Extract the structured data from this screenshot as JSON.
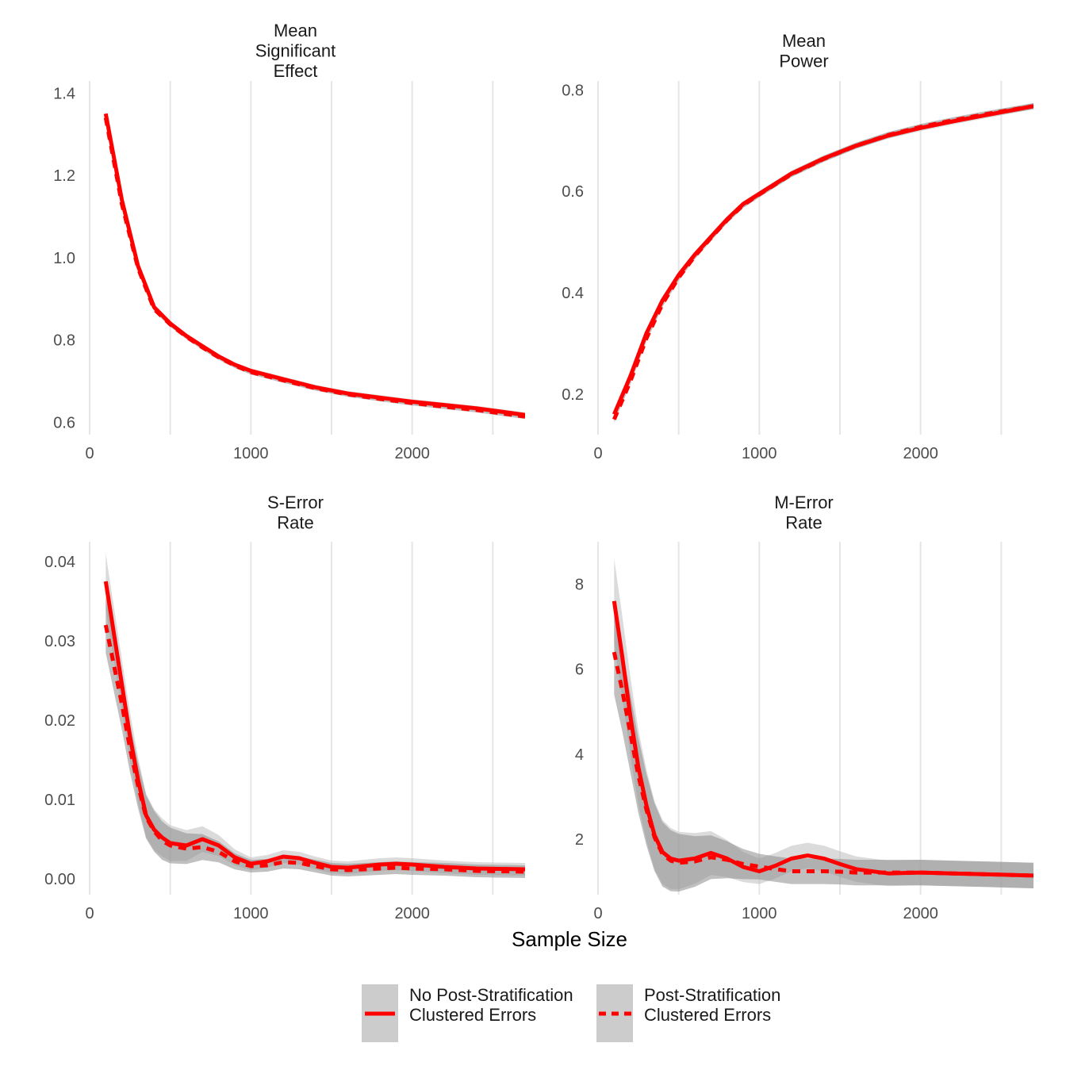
{
  "chart_data": {
    "type": "line",
    "xlabel": "Sample Size",
    "legend": {
      "placement": "bottom",
      "items": [
        {
          "label_line1": "No Post-Stratification",
          "label_line2": "Clustered Errors",
          "linetype": "solid"
        },
        {
          "label_line1": "Post-Stratification",
          "label_line2": "Clustered Errors",
          "linetype": "dashed"
        }
      ]
    },
    "colors": {
      "line": "#ff0000",
      "ribbon": "#bdbdbd",
      "ribbon_dark": "#8c8c8c",
      "legend_key": "#cccccc",
      "grid": "#e6e6e6"
    },
    "panels": [
      {
        "title_lines": [
          "Mean",
          "Significant",
          "Effect"
        ],
        "xlim": [
          0,
          2700
        ],
        "ylim": [
          0.57,
          1.42
        ],
        "xticks": [
          0,
          1000,
          2000
        ],
        "xtick_labels": [
          "0",
          "1000",
          "2000"
        ],
        "yticks": [
          0.6,
          0.8,
          1.0,
          1.2,
          1.4
        ],
        "ytick_labels": [
          "0.6",
          "0.8",
          "1.0",
          "1.2",
          "1.4"
        ],
        "ribbon_width": [
          0.006,
          0.006
        ],
        "series": [
          {
            "linetype": "solid",
            "x": [
              100,
              200,
              300,
              400,
              500,
              600,
              700,
              800,
              900,
              1000,
              1200,
              1400,
              1600,
              1800,
              2000,
              2200,
              2400,
              2700
            ],
            "y": [
              1.35,
              1.14,
              0.98,
              0.88,
              0.84,
              0.81,
              0.785,
              0.76,
              0.74,
              0.725,
              0.705,
              0.685,
              0.67,
              0.66,
              0.65,
              0.642,
              0.634,
              0.618
            ]
          },
          {
            "linetype": "dashed",
            "x": [
              100,
              200,
              300,
              400,
              500,
              600,
              700,
              800,
              900,
              1000,
              1200,
              1400,
              1600,
              1800,
              2000,
              2200,
              2400,
              2700
            ],
            "y": [
              1.34,
              1.13,
              0.975,
              0.875,
              0.838,
              0.808,
              0.782,
              0.758,
              0.738,
              0.722,
              0.702,
              0.683,
              0.668,
              0.657,
              0.647,
              0.638,
              0.63,
              0.614
            ]
          }
        ]
      },
      {
        "title_lines": [
          "Mean",
          "Power"
        ],
        "xlim": [
          0,
          2700
        ],
        "ylim": [
          0.12,
          0.81
        ],
        "xticks": [
          0,
          1000,
          2000
        ],
        "xtick_labels": [
          "0",
          "1000",
          "2000"
        ],
        "yticks": [
          0.2,
          0.4,
          0.6,
          0.8
        ],
        "ytick_labels": [
          "0.2",
          "0.4",
          "0.6",
          "0.8"
        ],
        "ribbon_width": [
          0.006,
          0.006
        ],
        "series": [
          {
            "linetype": "solid",
            "x": [
              100,
              200,
              300,
              400,
              500,
              600,
              700,
              800,
              900,
              1000,
              1200,
              1400,
              1600,
              1800,
              2000,
              2200,
              2400,
              2700
            ],
            "y": [
              0.16,
              0.235,
              0.32,
              0.385,
              0.435,
              0.475,
              0.51,
              0.545,
              0.575,
              0.595,
              0.635,
              0.665,
              0.69,
              0.71,
              0.725,
              0.738,
              0.75,
              0.768
            ]
          },
          {
            "linetype": "dashed",
            "x": [
              100,
              200,
              300,
              400,
              500,
              600,
              700,
              800,
              900,
              1000,
              1200,
              1400,
              1600,
              1800,
              2000,
              2200,
              2400,
              2700
            ],
            "y": [
              0.15,
              0.225,
              0.31,
              0.378,
              0.43,
              0.472,
              0.508,
              0.543,
              0.573,
              0.594,
              0.634,
              0.664,
              0.69,
              0.711,
              0.727,
              0.74,
              0.752,
              0.768
            ]
          }
        ]
      },
      {
        "title_lines": [
          "S-Error",
          "Rate"
        ],
        "xlim": [
          0,
          2700
        ],
        "ylim": [
          -0.002,
          0.042
        ],
        "xticks": [
          0,
          1000,
          2000
        ],
        "xtick_labels": [
          "0",
          "1000",
          "2000"
        ],
        "yticks": [
          0.0,
          0.01,
          0.02,
          0.03,
          0.04
        ],
        "ytick_labels": [
          "0.00",
          "0.01",
          "0.02",
          "0.03",
          "0.04"
        ],
        "ribbon_width": [
          0.0035,
          0.0008
        ],
        "series": [
          {
            "linetype": "solid",
            "x": [
              100,
              150,
              200,
              250,
              300,
              350,
              400,
              450,
              500,
              600,
              700,
              800,
              900,
              1000,
              1100,
              1200,
              1300,
              1400,
              1500,
              1600,
              1800,
              1900,
              2000,
              2200,
              2400,
              2700
            ],
            "y": [
              0.0375,
              0.031,
              0.0245,
              0.018,
              0.0125,
              0.008,
              0.0062,
              0.0052,
              0.0045,
              0.0042,
              0.005,
              0.0042,
              0.0027,
              0.0019,
              0.0022,
              0.0028,
              0.0026,
              0.002,
              0.0015,
              0.0014,
              0.0018,
              0.0019,
              0.0018,
              0.0015,
              0.0013,
              0.0012
            ]
          },
          {
            "linetype": "dashed",
            "x": [
              100,
              150,
              200,
              250,
              300,
              350,
              400,
              450,
              500,
              600,
              700,
              800,
              900,
              1000,
              1100,
              1200,
              1300,
              1400,
              1500,
              1600,
              1800,
              1900,
              2000,
              2200,
              2400,
              2700
            ],
            "y": [
              0.032,
              0.027,
              0.022,
              0.0165,
              0.0118,
              0.0078,
              0.006,
              0.0048,
              0.0042,
              0.0038,
              0.004,
              0.0034,
              0.0022,
              0.0016,
              0.0017,
              0.0021,
              0.002,
              0.0016,
              0.0012,
              0.0011,
              0.0013,
              0.0014,
              0.0013,
              0.0012,
              0.001,
              0.0009
            ]
          }
        ]
      },
      {
        "title_lines": [
          "M-Error",
          "Rate"
        ],
        "xlim": [
          0,
          2700
        ],
        "ylim": [
          0.7,
          8.9
        ],
        "xticks": [
          0,
          1000,
          2000
        ],
        "xtick_labels": [
          "0",
          "1000",
          "2000"
        ],
        "yticks": [
          2,
          4,
          6,
          8
        ],
        "ytick_labels": [
          "2",
          "4",
          "6",
          "8"
        ],
        "ribbon_width": [
          1.0,
          0.3
        ],
        "series": [
          {
            "linetype": "solid",
            "x": [
              100,
              150,
              200,
              250,
              300,
              350,
              400,
              450,
              500,
              600,
              700,
              800,
              900,
              1000,
              1100,
              1200,
              1300,
              1400,
              1500,
              1600,
              1800,
              2000,
              2200,
              2400,
              2700
            ],
            "y": [
              7.6,
              6.3,
              4.9,
              3.7,
              2.8,
              2.1,
              1.7,
              1.55,
              1.5,
              1.55,
              1.68,
              1.55,
              1.35,
              1.25,
              1.38,
              1.55,
              1.62,
              1.55,
              1.42,
              1.3,
              1.2,
              1.22,
              1.2,
              1.18,
              1.15
            ]
          },
          {
            "linetype": "dashed",
            "x": [
              100,
              150,
              200,
              250,
              300,
              350,
              400,
              450,
              500,
              600,
              700,
              800,
              900,
              1000,
              1100,
              1200,
              1300,
              1400,
              1500,
              1600,
              1800,
              2000,
              2200,
              2400,
              2700
            ],
            "y": [
              6.4,
              5.5,
              4.5,
              3.5,
              2.7,
              2.05,
              1.65,
              1.5,
              1.45,
              1.48,
              1.58,
              1.52,
              1.42,
              1.36,
              1.3,
              1.25,
              1.25,
              1.25,
              1.24,
              1.22,
              1.22,
              1.22,
              1.2,
              1.18,
              1.15
            ]
          }
        ]
      }
    ]
  }
}
